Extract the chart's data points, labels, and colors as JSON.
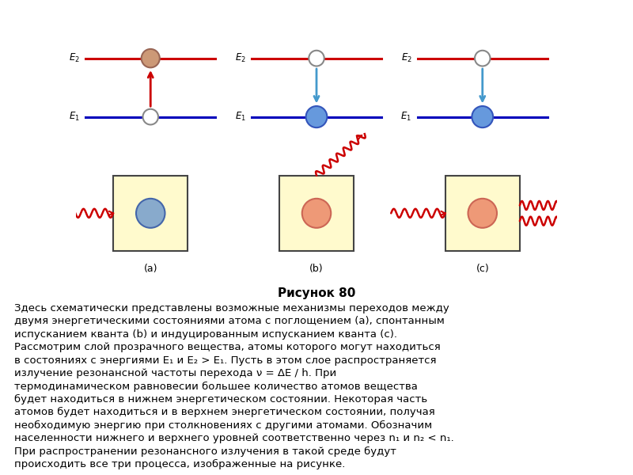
{
  "bg_color": "#f0d0d8",
  "outer_bg": "#ffffff",
  "box_color": "#fffacd",
  "title": "Рисунок 80",
  "E2_color": "#cc0000",
  "E1_color": "#0000bb",
  "arrow_up_color": "#cc0000",
  "arrow_down_color": "#4499cc",
  "wave_color": "#cc0000",
  "panel_labels": [
    "(a)",
    "(b)",
    "(c)"
  ],
  "text_lines": [
    "Здесь схематически представлены возможные механизмы переходов между",
    "двумя энергетическими состояниями атома с поглощением (a), спонтанным",
    "испусканием кванта (b) и индуцированным испусканием кванта (c).",
    "Рассмотрим слой прозрачного вещества, атомы которого могут находиться",
    "в состояниях с энергиями E₁ и E₂ > E₁. Пусть в этом слое распространяется",
    "излучение резонансной частоты перехода ν = ΔE / h. При",
    "термодинамическом равновесии большее количество атомов вещества",
    "будет находиться в нижнем энергетическом состоянии. Некоторая часть",
    "атомов будет находиться и в верхнем энергетическом состоянии, получая",
    "необходимую энергию при столкновениях с другими атомами. Обозначим",
    "населенности нижнего и верхнего уровней соответственно через n₁ и n₂ < n₁.",
    "При распространении резонансного излучения в такой среде будут",
    "происходить все три процесса, изображенные на рисунке."
  ]
}
